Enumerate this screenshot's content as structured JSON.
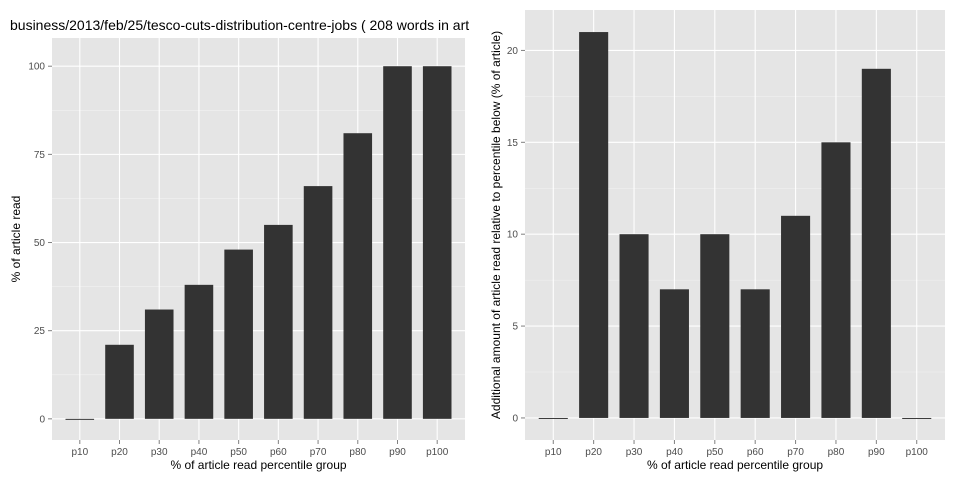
{
  "chart_data": [
    {
      "type": "bar",
      "title": "business/2013/feb/25/tesco-cuts-distribution-centre-jobs ( 208 words in art",
      "xlabel": "% of article read percentile group",
      "ylabel": "% of article read",
      "categories": [
        "p10",
        "p20",
        "p30",
        "p40",
        "p50",
        "p60",
        "p70",
        "p80",
        "p90",
        "p100"
      ],
      "values": [
        0,
        21,
        31,
        38,
        48,
        55,
        66,
        81,
        100,
        100
      ],
      "yticks": [
        0,
        25,
        50,
        75,
        100
      ],
      "ylim": [
        -6,
        108
      ],
      "grid": true,
      "bar_color": "#333333",
      "panel_bg": "#e5e5e5",
      "grid_color": "#ffffff"
    },
    {
      "type": "bar",
      "title": "",
      "xlabel": "% of article read percentile group",
      "ylabel": "Additional amount of article read relative to percentile below (% of article)",
      "categories": [
        "p10",
        "p20",
        "p30",
        "p40",
        "p50",
        "p60",
        "p70",
        "p80",
        "p90",
        "p100"
      ],
      "values": [
        0,
        21,
        10,
        7,
        10,
        7,
        11,
        15,
        19,
        0
      ],
      "yticks": [
        0,
        5,
        10,
        15,
        20
      ],
      "ylim": [
        -1.2,
        22.2
      ],
      "grid": true,
      "bar_color": "#333333",
      "panel_bg": "#e5e5e5",
      "grid_color": "#ffffff"
    }
  ]
}
